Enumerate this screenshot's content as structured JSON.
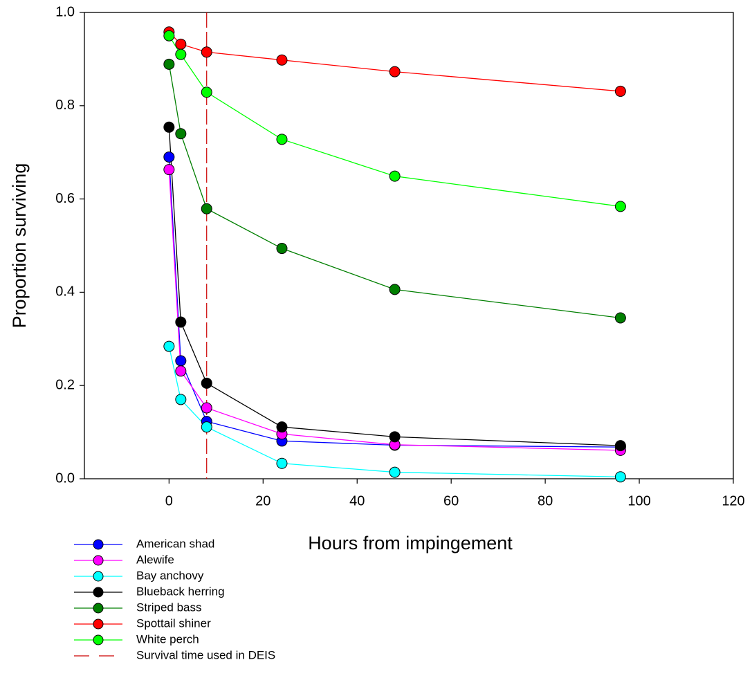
{
  "chart_data": {
    "type": "line",
    "x_label": "Hours from impingement",
    "y_label": "Proportion surviving",
    "x": [
      0,
      2.5,
      8,
      24,
      48,
      96
    ],
    "xlim": [
      -18,
      120
    ],
    "xticks": [
      0,
      20,
      40,
      60,
      80,
      100,
      120
    ],
    "ylim": [
      0,
      1
    ],
    "yticks": [
      {
        "value": 0,
        "label": "0.0"
      },
      0.2,
      0.4,
      0.6,
      0.8,
      {
        "value": 1,
        "label": "1.0"
      }
    ],
    "series": [
      {
        "name": "American shad",
        "color": "#0000ff",
        "values": [
          0.69,
          0.253,
          0.123,
          0.081,
          0.072,
          0.068
        ]
      },
      {
        "name": "Alewife",
        "color": "#ff00ff",
        "values": [
          0.663,
          0.231,
          0.152,
          0.096,
          0.073,
          0.061
        ]
      },
      {
        "name": "Bay anchovy",
        "color": "#00ffff",
        "values": [
          0.284,
          0.17,
          0.111,
          0.033,
          0.014,
          0.004
        ]
      },
      {
        "name": "Blueback herring",
        "color": "#000000",
        "values": [
          0.754,
          0.336,
          0.205,
          0.111,
          0.09,
          0.071
        ]
      },
      {
        "name": "Striped bass",
        "color": "#007f00",
        "values": [
          0.889,
          0.74,
          0.579,
          0.494,
          0.406,
          0.345
        ]
      },
      {
        "name": "Spottail shiner",
        "color": "#ff0000",
        "values": [
          0.958,
          0.932,
          0.915,
          0.898,
          0.873,
          0.831
        ]
      },
      {
        "name": "White perch",
        "color": "#00ff00",
        "values": [
          0.95,
          0.91,
          0.829,
          0.728,
          0.649,
          0.584
        ]
      }
    ],
    "reference_lines": [
      {
        "name": "Survival time used in DEIS",
        "x": 8,
        "color": "#cc0000"
      }
    ]
  }
}
